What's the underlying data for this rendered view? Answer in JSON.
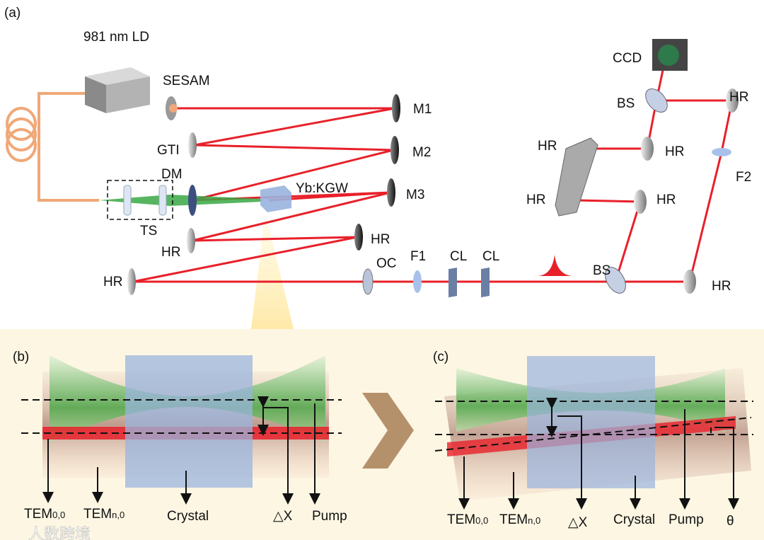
{
  "panel_a": {
    "tag": "(a)",
    "source": "981 nm LD",
    "labels": {
      "sesam": "SESAM",
      "m1": "M1",
      "m2": "M2",
      "m3": "M3",
      "gti": "GTI",
      "dm": "DM",
      "crystal": "Yb:KGW",
      "ts": "TS",
      "hr_mid_left": "HR",
      "hr_mid_right": "HR",
      "hr_far_left": "HR",
      "oc": "OC",
      "f1": "F1",
      "cl1": "CL",
      "cl2": "CL",
      "bs_lower": "BS",
      "hr_lower_right": "HR",
      "ccd": "CCD",
      "bs_upper": "BS",
      "hr_top_right": "HR",
      "hr_periscope_top": "HR",
      "hr_upper_mid": "HR",
      "f2": "F2",
      "hr_periscope_bottom": "HR",
      "hr_lower_mid": "HR"
    }
  },
  "panel_b": {
    "tag": "(b)",
    "labels": {
      "tem00": "TEM",
      "tem00_sub": "0,0",
      "temn0": "TEM",
      "temn0_sub": "n,0",
      "crystal": "Crystal",
      "dx": "△X",
      "pump": "Pump"
    }
  },
  "panel_c": {
    "tag": "(c)",
    "labels": {
      "tem00": "TEM",
      "tem00_sub": "0,0",
      "temn0": "TEM",
      "temn0_sub": "n,0",
      "dx": "△X",
      "crystal": "Crystal",
      "pump": "Pump",
      "theta": "θ"
    }
  },
  "watermark": "人数跨境",
  "colors": {
    "laser": "#e8202a",
    "pump": "#3aa845",
    "fiber": "#f0a878",
    "crystal": "#9ab4de",
    "panel_bg": "#fdf6e3",
    "chevron": "#b5916b"
  }
}
